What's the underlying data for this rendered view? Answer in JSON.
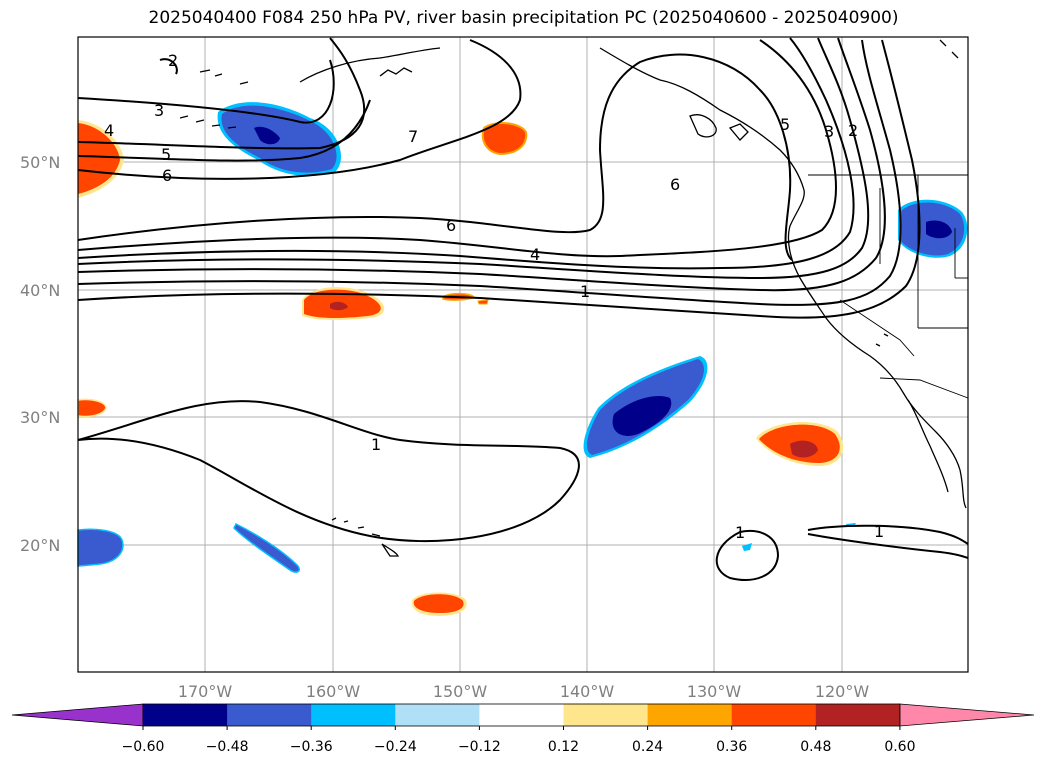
{
  "title": "2025040400 F084 250 hPa PV, river basin precipitation PC (2025040600 - 2025040900)",
  "lat_labels": [
    "50°N",
    "40°N",
    "30°N",
    "20°N"
  ],
  "lon_labels": [
    "170°W",
    "160°W",
    "150°W",
    "140°W",
    "130°W",
    "120°W"
  ],
  "contour_labels": [
    "2",
    "3",
    "4",
    "5",
    "6",
    "7",
    "6",
    "6",
    "4",
    "1",
    "1",
    "5",
    "3",
    "2",
    "1",
    "1"
  ],
  "colorbar": {
    "ticks": [
      "−0.60",
      "−0.48",
      "−0.36",
      "−0.24",
      "−0.12",
      "0.12",
      "0.24",
      "0.36",
      "0.48",
      "0.60"
    ],
    "colors": [
      "#9932cc",
      "#00008b",
      "#3a5bd0",
      "#00bfff",
      "#b0e0f8",
      "#ffffff",
      "#ffe68c",
      "#ffa500",
      "#ff4500",
      "#b22222",
      "#ff88aa"
    ]
  },
  "colors": {
    "dark_blue": "#00008b",
    "mid_blue": "#3a5bd0",
    "light_blue": "#00bfff",
    "orange_red": "#ff4500",
    "dark_red": "#b22222",
    "yellow": "#ffe68c"
  }
}
